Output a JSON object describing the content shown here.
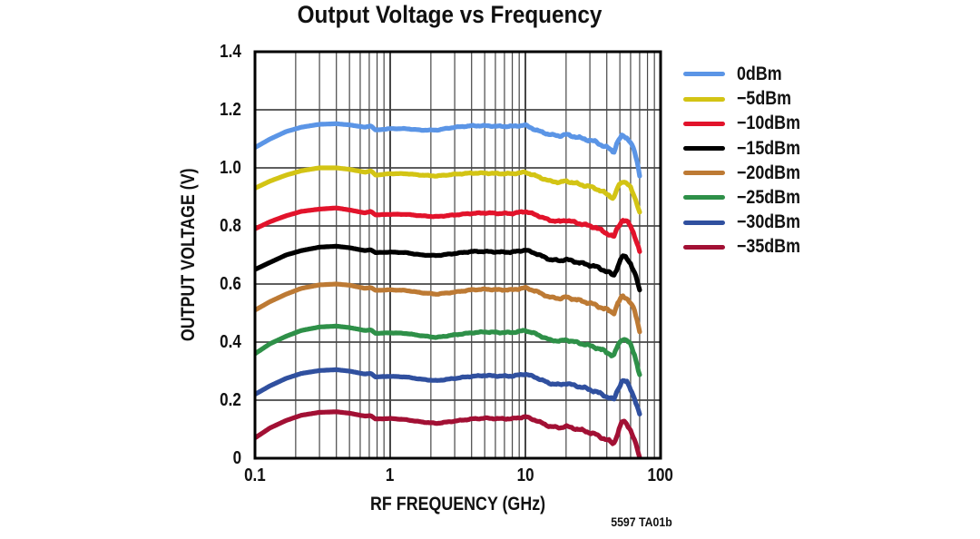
{
  "title": "Output Voltage vs Frequency",
  "annotation": "5597 TA01b",
  "colors": {
    "background": "#ffffff",
    "grid": "#474747",
    "frame": "#000000",
    "text": "#111111"
  },
  "chart_data": {
    "type": "line",
    "title": "Output Voltage vs Frequency",
    "xlabel": "RF FREQUENCY (GHz)",
    "ylabel": "OUTPUT VOLTAGE (V)",
    "x_scale": "log",
    "xlim": [
      0.1,
      100
    ],
    "ylim": [
      0,
      1.4
    ],
    "x_ticks": [
      "0.1",
      "1",
      "10",
      "100"
    ],
    "y_ticks": [
      "0",
      "0.2",
      "0.4",
      "0.6",
      "0.8",
      "1.0",
      "1.2",
      "1.4"
    ],
    "grid": true,
    "legend_position": "right",
    "x_ghz": [
      0.1,
      0.13,
      0.17,
      0.22,
      0.3,
      0.4,
      0.5,
      0.65,
      0.72,
      0.78,
      1,
      1.3,
      1.7,
      2.2,
      3,
      4,
      5,
      6.5,
      8,
      10,
      12,
      15,
      18,
      20,
      22,
      27,
      33,
      38,
      42,
      45,
      48,
      52,
      56,
      60,
      64,
      67,
      70
    ],
    "series": [
      {
        "name": "0dBm",
        "color": "#5B95E6",
        "values": [
          1.07,
          1.1,
          1.125,
          1.14,
          1.15,
          1.152,
          1.148,
          1.14,
          1.145,
          1.13,
          1.135,
          1.135,
          1.13,
          1.13,
          1.14,
          1.145,
          1.145,
          1.143,
          1.143,
          1.147,
          1.13,
          1.115,
          1.11,
          1.115,
          1.11,
          1.1,
          1.09,
          1.075,
          1.065,
          1.055,
          1.09,
          1.11,
          1.105,
          1.09,
          1.055,
          1.02,
          0.975
        ]
      },
      {
        "name": "−5dBm",
        "color": "#D3C414",
        "values": [
          0.93,
          0.955,
          0.975,
          0.99,
          1.0,
          1.0,
          0.995,
          0.985,
          0.99,
          0.975,
          0.98,
          0.98,
          0.975,
          0.972,
          0.978,
          0.982,
          0.982,
          0.98,
          0.98,
          0.985,
          0.972,
          0.955,
          0.95,
          0.955,
          0.95,
          0.94,
          0.93,
          0.915,
          0.905,
          0.895,
          0.93,
          0.955,
          0.95,
          0.93,
          0.9,
          0.877,
          0.85
        ]
      },
      {
        "name": "−10dBm",
        "color": "#E2132B",
        "values": [
          0.79,
          0.815,
          0.835,
          0.85,
          0.858,
          0.862,
          0.855,
          0.845,
          0.85,
          0.838,
          0.84,
          0.84,
          0.835,
          0.832,
          0.838,
          0.843,
          0.845,
          0.843,
          0.843,
          0.85,
          0.838,
          0.82,
          0.815,
          0.82,
          0.815,
          0.805,
          0.795,
          0.78,
          0.77,
          0.76,
          0.795,
          0.82,
          0.815,
          0.8,
          0.77,
          0.74,
          0.71
        ]
      },
      {
        "name": "−15dBm",
        "color": "#000000",
        "values": [
          0.65,
          0.675,
          0.7,
          0.715,
          0.727,
          0.73,
          0.725,
          0.715,
          0.718,
          0.708,
          0.71,
          0.708,
          0.7,
          0.698,
          0.705,
          0.712,
          0.712,
          0.71,
          0.71,
          0.717,
          0.705,
          0.685,
          0.68,
          0.685,
          0.68,
          0.67,
          0.66,
          0.648,
          0.638,
          0.628,
          0.66,
          0.695,
          0.69,
          0.672,
          0.64,
          0.61,
          0.578
        ]
      },
      {
        "name": "−20dBm",
        "color": "#BD7A34",
        "values": [
          0.51,
          0.54,
          0.565,
          0.585,
          0.597,
          0.6,
          0.596,
          0.585,
          0.588,
          0.578,
          0.58,
          0.578,
          0.57,
          0.565,
          0.572,
          0.58,
          0.582,
          0.58,
          0.58,
          0.587,
          0.575,
          0.555,
          0.55,
          0.555,
          0.55,
          0.54,
          0.528,
          0.515,
          0.508,
          0.5,
          0.53,
          0.558,
          0.553,
          0.535,
          0.508,
          0.475,
          0.438
        ]
      },
      {
        "name": "−25dBm",
        "color": "#2E9048",
        "values": [
          0.36,
          0.395,
          0.42,
          0.44,
          0.452,
          0.455,
          0.45,
          0.44,
          0.442,
          0.43,
          0.432,
          0.43,
          0.422,
          0.416,
          0.425,
          0.432,
          0.435,
          0.433,
          0.433,
          0.44,
          0.428,
          0.408,
          0.403,
          0.408,
          0.403,
          0.393,
          0.382,
          0.37,
          0.36,
          0.352,
          0.385,
          0.413,
          0.407,
          0.39,
          0.358,
          0.325,
          0.287
        ]
      },
      {
        "name": "−30dBm",
        "color": "#30509F",
        "values": [
          0.22,
          0.25,
          0.275,
          0.292,
          0.302,
          0.305,
          0.3,
          0.29,
          0.292,
          0.28,
          0.282,
          0.28,
          0.272,
          0.267,
          0.275,
          0.282,
          0.285,
          0.283,
          0.283,
          0.29,
          0.278,
          0.258,
          0.253,
          0.258,
          0.253,
          0.243,
          0.23,
          0.217,
          0.208,
          0.2,
          0.235,
          0.268,
          0.262,
          0.24,
          0.208,
          0.178,
          0.148
        ]
      },
      {
        "name": "−35dBm",
        "color": "#A21034",
        "values": [
          0.07,
          0.105,
          0.13,
          0.148,
          0.158,
          0.16,
          0.155,
          0.145,
          0.147,
          0.135,
          0.137,
          0.133,
          0.125,
          0.12,
          0.128,
          0.135,
          0.138,
          0.136,
          0.136,
          0.143,
          0.13,
          0.11,
          0.105,
          0.11,
          0.105,
          0.095,
          0.082,
          0.068,
          0.058,
          0.05,
          0.085,
          0.127,
          0.12,
          0.098,
          0.062,
          0.032,
          0.003
        ]
      }
    ]
  }
}
